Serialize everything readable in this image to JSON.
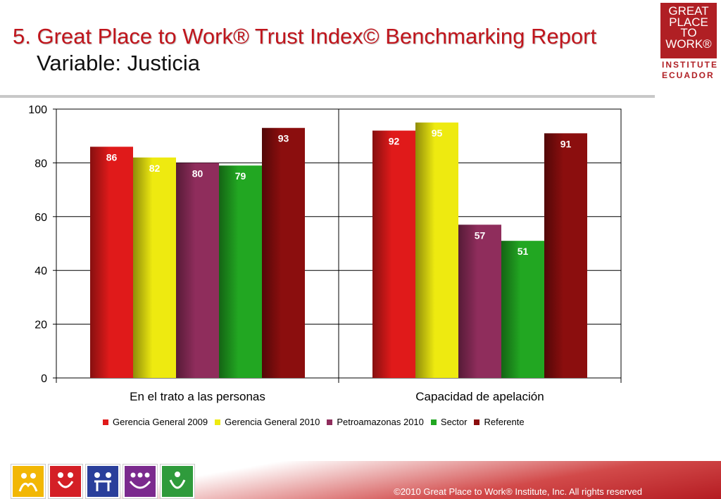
{
  "header": {
    "title": "5. Great Place to Work® Trust Index© Benchmarking Report",
    "subtitle": "Variable: Justicia"
  },
  "logo": {
    "lines": [
      "GREAT",
      "PLACE",
      "TO",
      "WORK®"
    ],
    "sub_lines": [
      "INSTITUTE",
      "ECUADOR"
    ],
    "color": "#b01f24"
  },
  "chart_data": {
    "type": "bar",
    "categories": [
      "En el trato a las personas",
      "Capacidad de apelación"
    ],
    "series": [
      {
        "name": "Gerencia General 2009",
        "color": "#e01a1a",
        "values": [
          86,
          92
        ]
      },
      {
        "name": "Gerencia General 2010",
        "color": "#eeea10",
        "values": [
          82,
          95
        ]
      },
      {
        "name": "Petroamazonas 2010",
        "color": "#8f2d5c",
        "values": [
          80,
          57
        ]
      },
      {
        "name": "Sector",
        "color": "#22a722",
        "values": [
          79,
          51
        ]
      },
      {
        "name": "Referente",
        "color": "#8b0e0e",
        "values": [
          93,
          91
        ]
      }
    ],
    "ylim": [
      0,
      100
    ],
    "yticks": [
      0,
      20,
      40,
      60,
      80,
      100
    ],
    "grid": true,
    "legend": "bottom"
  },
  "footer": {
    "copyright": "©2010 Great Place to Work® Institute, Inc. All rights reserved",
    "icons": [
      {
        "name": "people-icon-yellow",
        "color": "#f2b705"
      },
      {
        "name": "people-icon-red",
        "color": "#d41f26"
      },
      {
        "name": "people-icon-blue",
        "color": "#2a3f9b"
      },
      {
        "name": "people-icon-purple",
        "color": "#7b2a8e"
      },
      {
        "name": "people-icon-green",
        "color": "#2f9b3c"
      }
    ]
  }
}
